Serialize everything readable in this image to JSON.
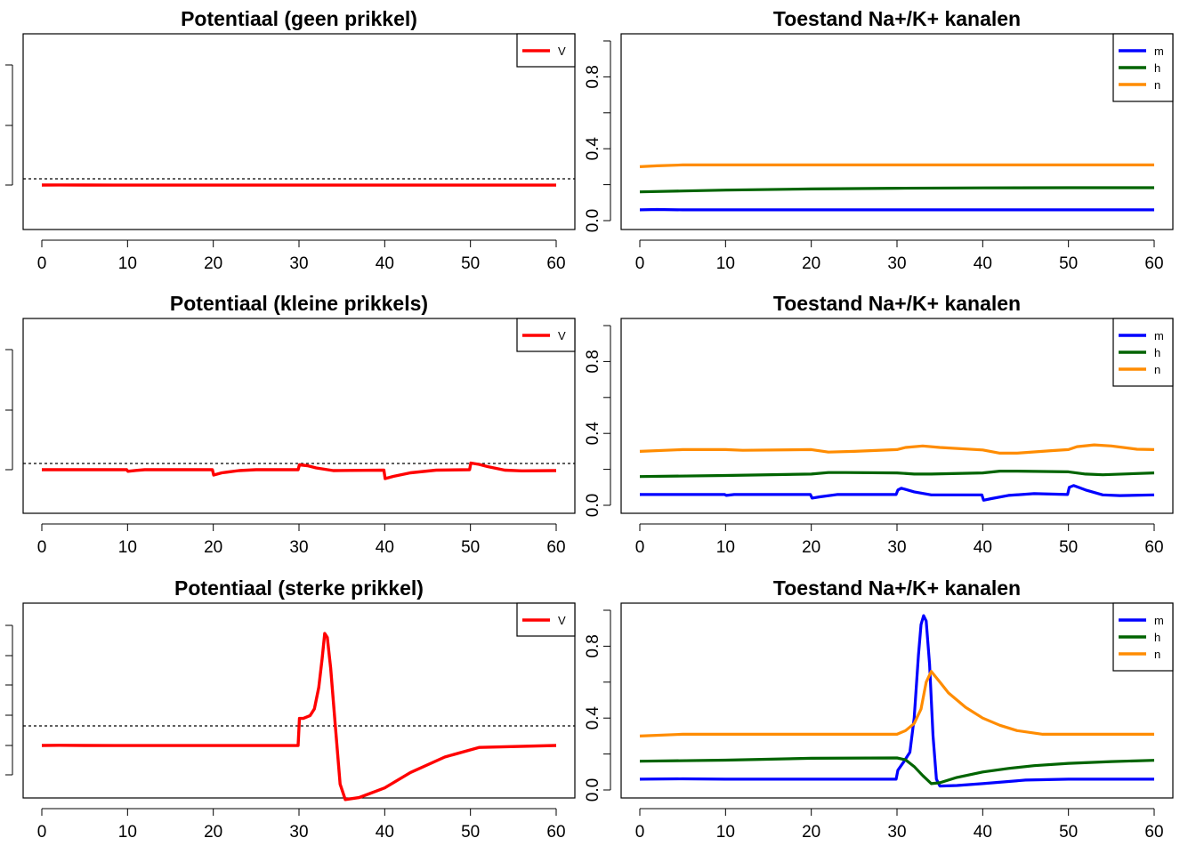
{
  "colors": {
    "V": "#ff0000",
    "m": "#0000ff",
    "h": "#006400",
    "n": "#ff8c00",
    "threshold": "#000000"
  },
  "chart_data": [
    {
      "type": "line",
      "title": "Potentiaal (geen prikkel)",
      "xlim": [
        0,
        60
      ],
      "x_ticks": [
        "0",
        "10",
        "20",
        "30",
        "40",
        "50",
        "60"
      ],
      "y_ticks_unlabeled": true,
      "legend": "top-right",
      "threshold_line": "dotted",
      "series": [
        {
          "name": "V",
          "color": "#ff0000",
          "x": [
            0,
            2,
            5,
            10,
            20,
            30,
            40,
            50,
            60
          ],
          "y": [
            0,
            0.1,
            0,
            -0.1,
            -0.1,
            -0.1,
            -0.1,
            -0.1,
            -0.1
          ]
        }
      ]
    },
    {
      "type": "line",
      "title": "Toestand Na+/K+ kanalen",
      "xlim": [
        0,
        60
      ],
      "ylim": [
        0,
        1
      ],
      "x_ticks": [
        "0",
        "10",
        "20",
        "30",
        "40",
        "50",
        "60"
      ],
      "y_ticks": [
        "0.0",
        "0.4",
        "0.8"
      ],
      "legend": "top-right",
      "series": [
        {
          "name": "m",
          "color": "#0000ff",
          "x": [
            0,
            2,
            5,
            10,
            20,
            30,
            40,
            50,
            60
          ],
          "y": [
            0.06,
            0.062,
            0.06,
            0.06,
            0.06,
            0.06,
            0.06,
            0.06,
            0.06
          ]
        },
        {
          "name": "h",
          "color": "#006400",
          "x": [
            0,
            5,
            10,
            20,
            30,
            40,
            50,
            60
          ],
          "y": [
            0.16,
            0.165,
            0.17,
            0.176,
            0.18,
            0.182,
            0.183,
            0.183
          ]
        },
        {
          "name": "n",
          "color": "#ff8c00",
          "x": [
            0,
            2,
            5,
            10,
            20,
            30,
            40,
            50,
            60
          ],
          "y": [
            0.3,
            0.305,
            0.31,
            0.31,
            0.31,
            0.31,
            0.31,
            0.31,
            0.31
          ]
        }
      ]
    },
    {
      "type": "line",
      "title": "Potentiaal (kleine prikkels)",
      "xlim": [
        0,
        60
      ],
      "x_ticks": [
        "0",
        "10",
        "20",
        "30",
        "40",
        "50",
        "60"
      ],
      "y_ticks_unlabeled": true,
      "legend": "top-right",
      "threshold_line": "dotted",
      "series": [
        {
          "name": "V",
          "color": "#ff0000",
          "x": [
            0,
            9.9,
            10.05,
            11,
            12,
            19.9,
            20.05,
            21,
            23,
            25,
            29.9,
            30.05,
            31,
            32,
            34,
            36,
            39.9,
            40.05,
            41,
            43,
            46,
            49.9,
            50.05,
            51,
            52,
            54,
            56,
            60
          ],
          "y": [
            0,
            0,
            -0.35,
            -0.15,
            0,
            0,
            -1.2,
            -0.7,
            -0.2,
            0,
            0,
            1.1,
            0.9,
            0.4,
            -0.2,
            -0.15,
            -0.1,
            -2.0,
            -1.5,
            -0.7,
            -0.1,
            0,
            1.5,
            1.2,
            0.7,
            -0.1,
            -0.25,
            -0.2
          ]
        }
      ]
    },
    {
      "type": "line",
      "title": "Toestand Na+/K+ kanalen",
      "xlim": [
        0,
        60
      ],
      "ylim": [
        0,
        1
      ],
      "x_ticks": [
        "0",
        "10",
        "20",
        "30",
        "40",
        "50",
        "60"
      ],
      "y_ticks": [
        "0.0",
        "0.4",
        "0.8"
      ],
      "legend": "top-right",
      "series": [
        {
          "name": "m",
          "color": "#0000ff",
          "x": [
            0,
            9.9,
            10.1,
            11,
            19.9,
            20.1,
            21,
            23,
            29.9,
            30.1,
            30.5,
            32,
            34,
            39.9,
            40.1,
            41,
            43,
            46,
            49.9,
            50.1,
            50.6,
            52,
            54,
            56,
            60
          ],
          "y": [
            0.06,
            0.06,
            0.055,
            0.06,
            0.06,
            0.04,
            0.047,
            0.06,
            0.06,
            0.085,
            0.095,
            0.075,
            0.058,
            0.058,
            0.028,
            0.037,
            0.055,
            0.065,
            0.06,
            0.1,
            0.11,
            0.085,
            0.058,
            0.054,
            0.058
          ]
        },
        {
          "name": "h",
          "color": "#006400",
          "x": [
            0,
            10,
            20,
            22,
            24,
            30,
            32,
            34,
            40,
            42,
            44,
            50,
            52,
            54,
            60
          ],
          "y": [
            0.16,
            0.166,
            0.174,
            0.182,
            0.182,
            0.18,
            0.174,
            0.174,
            0.18,
            0.19,
            0.19,
            0.186,
            0.174,
            0.17,
            0.18
          ]
        },
        {
          "name": "n",
          "color": "#ff8c00",
          "x": [
            0,
            5,
            10,
            12,
            20,
            22,
            25,
            30,
            31,
            33,
            35,
            40,
            42,
            44,
            48,
            50,
            51,
            53,
            55,
            58,
            60
          ],
          "y": [
            0.3,
            0.31,
            0.31,
            0.306,
            0.31,
            0.296,
            0.3,
            0.31,
            0.322,
            0.33,
            0.322,
            0.308,
            0.29,
            0.29,
            0.304,
            0.31,
            0.326,
            0.336,
            0.33,
            0.312,
            0.31
          ]
        }
      ]
    },
    {
      "type": "line",
      "title": "Potentiaal (sterke prikkel)",
      "xlim": [
        0,
        60
      ],
      "x_ticks": [
        "0",
        "10",
        "20",
        "30",
        "40",
        "50",
        "60"
      ],
      "y_ticks_unlabeled": true,
      "legend": "top-right",
      "threshold_line": "dotted",
      "series": [
        {
          "name": "V",
          "color": "#ff0000",
          "x": [
            0,
            2,
            5,
            10,
            29.9,
            30.05,
            30.5,
            31.3,
            31.8,
            32.3,
            32.7,
            33,
            33.3,
            33.7,
            34.2,
            34.8,
            35.4,
            37,
            40,
            43,
            47,
            51,
            60
          ],
          "y": [
            0,
            0.1,
            0,
            -0.05,
            -0.05,
            14,
            14,
            15.5,
            19,
            30,
            45,
            58,
            56,
            40,
            12,
            -20,
            -28,
            -27,
            -22,
            -14,
            -6,
            -1,
            0
          ]
        }
      ]
    },
    {
      "type": "line",
      "title": "Toestand Na+/K+ kanalen",
      "xlim": [
        0,
        60
      ],
      "ylim": [
        0,
        1
      ],
      "x_ticks": [
        "0",
        "10",
        "20",
        "30",
        "40",
        "50",
        "60"
      ],
      "y_ticks": [
        "0.0",
        "0.4",
        "0.8"
      ],
      "legend": "top-right",
      "series": [
        {
          "name": "m",
          "color": "#0000ff",
          "x": [
            0,
            5,
            10,
            29.9,
            30.1,
            30.7,
            31.5,
            32,
            32.5,
            32.8,
            33.1,
            33.4,
            33.8,
            34.2,
            34.6,
            35,
            37,
            40,
            45,
            50,
            60
          ],
          "y": [
            0.06,
            0.062,
            0.06,
            0.06,
            0.11,
            0.15,
            0.21,
            0.4,
            0.75,
            0.92,
            0.97,
            0.94,
            0.7,
            0.3,
            0.06,
            0.022,
            0.025,
            0.035,
            0.055,
            0.06,
            0.06
          ]
        },
        {
          "name": "h",
          "color": "#006400",
          "x": [
            0,
            10,
            20,
            30,
            31,
            32,
            33,
            34,
            35,
            37,
            40,
            43,
            46,
            50,
            55,
            60
          ],
          "y": [
            0.16,
            0.166,
            0.176,
            0.178,
            0.168,
            0.13,
            0.08,
            0.035,
            0.04,
            0.07,
            0.1,
            0.12,
            0.135,
            0.148,
            0.158,
            0.165
          ]
        },
        {
          "name": "n",
          "color": "#ff8c00",
          "x": [
            0,
            5,
            10,
            30,
            31,
            32,
            32.8,
            33.4,
            34,
            35,
            36,
            38,
            40,
            42,
            44,
            47,
            50,
            60
          ],
          "y": [
            0.3,
            0.31,
            0.31,
            0.31,
            0.33,
            0.37,
            0.45,
            0.6,
            0.66,
            0.6,
            0.54,
            0.46,
            0.4,
            0.36,
            0.33,
            0.31,
            0.31,
            0.31
          ]
        }
      ]
    }
  ]
}
